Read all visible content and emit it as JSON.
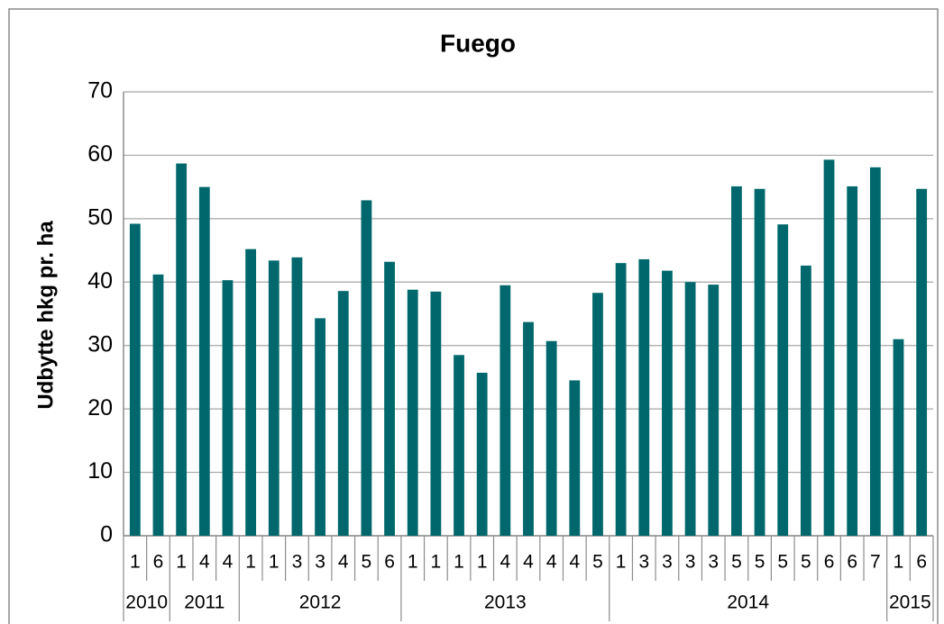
{
  "chart_data": {
    "type": "bar",
    "title": "Fuego",
    "y_label": "Udbytte hkg pr. ha",
    "color": "#00686c",
    "ylim": [
      0,
      70
    ],
    "yticks": [
      0,
      10,
      20,
      30,
      40,
      50,
      60,
      70
    ],
    "grid": true,
    "groups": [
      {
        "label": "2010",
        "categories": [
          "1",
          "6"
        ],
        "values": [
          49.2,
          41.2
        ]
      },
      {
        "label": "2011",
        "categories": [
          "1",
          "4",
          "4"
        ],
        "values": [
          58.7,
          55,
          40.3
        ]
      },
      {
        "label": "2012",
        "categories": [
          "1",
          "1",
          "3",
          "3",
          "4",
          "5",
          "6"
        ],
        "values": [
          45.2,
          43.4,
          43.9,
          34.3,
          38.6,
          52.9,
          43.2
        ]
      },
      {
        "label": "2013",
        "categories": [
          "1",
          "1",
          "1",
          "1",
          "4",
          "4",
          "4",
          "4",
          "5"
        ],
        "values": [
          38.8,
          38.5,
          28.5,
          25.7,
          39.5,
          33.7,
          30.7,
          24.5,
          38.3
        ]
      },
      {
        "label": "2014",
        "categories": [
          "1",
          "3",
          "3",
          "3",
          "3",
          "5",
          "5",
          "5",
          "5",
          "6",
          "6",
          "7"
        ],
        "values": [
          43,
          43.6,
          41.8,
          40,
          39.6,
          55.1,
          54.7,
          49.1,
          42.6,
          59.3,
          55.1,
          58.1
        ]
      },
      {
        "label": "2015",
        "categories": [
          "1",
          "6"
        ],
        "values": [
          31,
          54.7
        ]
      }
    ]
  }
}
